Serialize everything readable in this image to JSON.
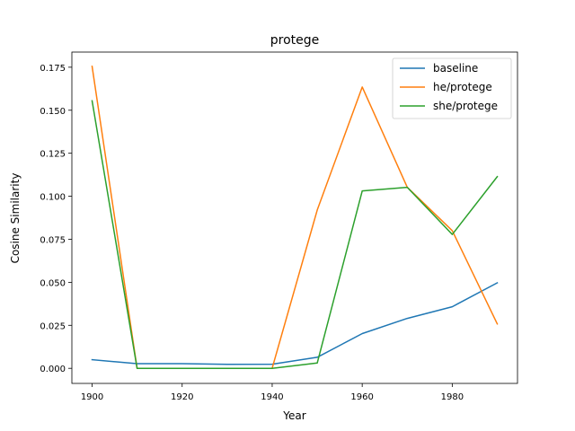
{
  "chart_data": {
    "type": "line",
    "title": "protege",
    "xlabel": "Year",
    "ylabel": "Cosine Similarity",
    "xlim": [
      1895.5,
      1994.5
    ],
    "ylim": [
      -0.00877,
      0.1838
    ],
    "xticks": [
      1900,
      1920,
      1940,
      1960,
      1980
    ],
    "yticks": [
      0.0,
      0.025,
      0.05,
      0.075,
      0.1,
      0.125,
      0.15,
      0.175
    ],
    "ytick_labels": [
      "0.000",
      "0.025",
      "0.050",
      "0.075",
      "0.100",
      "0.125",
      "0.150",
      "0.175"
    ],
    "grid": false,
    "legend_position": "top-right",
    "x": [
      1900,
      1910,
      1920,
      1930,
      1940,
      1950,
      1960,
      1970,
      1980,
      1990
    ],
    "series": [
      {
        "name": "baseline",
        "color": "#1f77b4",
        "values": [
          0.005,
          0.0027,
          0.0027,
          0.0023,
          0.0024,
          0.0064,
          0.0202,
          0.029,
          0.0358,
          0.0497
        ]
      },
      {
        "name": "he/protege",
        "color": "#ff7f0e",
        "values": [
          0.1755,
          0.0,
          0.0,
          0.0,
          0.0,
          0.092,
          0.1635,
          0.1052,
          0.08,
          0.0258
        ]
      },
      {
        "name": "she/protege",
        "color": "#2ca02c",
        "values": [
          0.1555,
          0.0,
          0.0,
          0.0,
          0.0,
          0.0031,
          0.1031,
          0.1052,
          0.0778,
          0.1114
        ]
      }
    ]
  }
}
